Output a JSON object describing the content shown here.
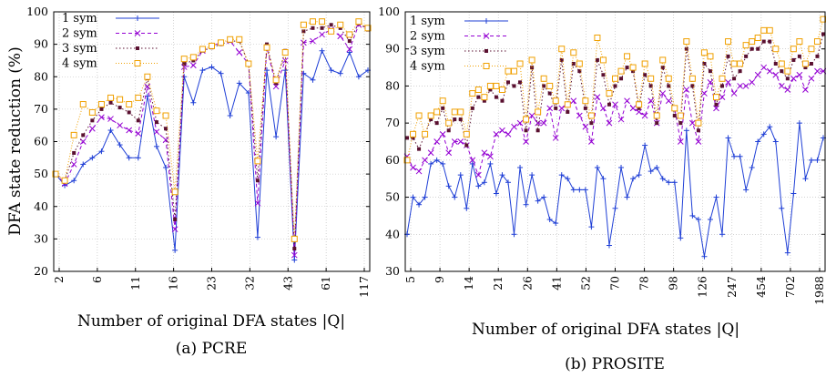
{
  "chart_data": [
    {
      "type": "line",
      "caption": "(a) PCRE",
      "ylabel": "DFA state reduction (%)",
      "xlabel": "Number of original DFA states |Q|",
      "ylim": [
        20,
        100
      ],
      "yticks": [
        20,
        30,
        40,
        50,
        60,
        70,
        80,
        90,
        100
      ],
      "xtick_labels": [
        "2",
        "6",
        "11",
        "16",
        "23",
        "32",
        "43",
        "61",
        "117"
      ],
      "legend_position": "top-left",
      "colors": [
        "#1f3fd6",
        "#9400d3",
        "#5a1030",
        "#f0a000"
      ],
      "series": [
        {
          "name": "1 sym",
          "values": [
            50,
            46.5,
            48,
            53,
            55,
            57,
            63.5,
            59,
            55,
            55,
            74,
            58.5,
            52,
            26.5,
            80,
            72,
            82,
            83,
            81,
            68,
            78,
            75,
            30.5,
            82,
            61.5,
            82,
            23.5,
            81,
            79,
            88,
            82,
            81,
            87.5,
            80,
            82
          ]
        },
        {
          "name": "2 sym",
          "values": [
            50,
            47,
            53,
            60,
            64,
            67.5,
            67,
            65,
            63.5,
            62.5,
            77,
            63,
            60.5,
            33,
            83,
            83.5,
            88,
            89.5,
            90.5,
            91,
            87.5,
            84,
            41,
            89,
            77,
            85,
            25,
            90.5,
            91,
            93,
            94.5,
            92.5,
            88.5,
            96,
            95
          ]
        },
        {
          "name": "3 sym",
          "values": [
            50,
            48,
            56.5,
            62,
            66.5,
            70,
            72,
            70.5,
            69,
            66.5,
            79.5,
            66,
            64,
            36,
            84,
            85,
            88,
            89,
            90,
            91,
            91,
            84,
            48,
            90,
            78,
            88,
            27,
            94,
            95,
            95,
            96,
            95,
            91,
            96.5,
            94.5
          ]
        },
        {
          "name": "4 sym",
          "values": [
            50,
            48,
            62,
            71.5,
            69,
            71.5,
            73.5,
            73,
            71.5,
            73.5,
            80,
            69.5,
            68,
            44.5,
            85.5,
            86,
            88.5,
            89.5,
            90.5,
            91.5,
            91.5,
            84,
            54,
            89,
            79,
            87.5,
            30,
            96,
            97,
            97,
            94,
            96,
            93,
            97,
            95
          ]
        }
      ]
    },
    {
      "type": "line",
      "caption": "(b) PROSITE",
      "xlabel": "Number of original DFA states |Q|",
      "ylim": [
        30,
        100
      ],
      "yticks": [
        30,
        40,
        50,
        60,
        70,
        80,
        90,
        100
      ],
      "xtick_labels": [
        "5",
        "9",
        "14",
        "21",
        "26",
        "41",
        "52",
        "70",
        "78",
        "98",
        "126",
        "247",
        "454",
        "702",
        "1988"
      ],
      "legend_position": "top-left",
      "colors": [
        "#1f3fd6",
        "#9400d3",
        "#5a1030",
        "#f0a000"
      ],
      "series": [
        {
          "name": "1 sym",
          "values": [
            40,
            50,
            48,
            50,
            59,
            60,
            59,
            53,
            50,
            56,
            47,
            59,
            53,
            54,
            59,
            51,
            56,
            54,
            40,
            58,
            48,
            56,
            49,
            50,
            44,
            43,
            56,
            55,
            52,
            52,
            52,
            42,
            58,
            55,
            37,
            47,
            58,
            50,
            55,
            56,
            64,
            57,
            58,
            55,
            54,
            54,
            39,
            68,
            45,
            44,
            34,
            44,
            50,
            40,
            66,
            61,
            61,
            52,
            58,
            65,
            67,
            69,
            65,
            47,
            35,
            51,
            70,
            55,
            60,
            60,
            66
          ]
        },
        {
          "name": "2 sym",
          "values": [
            61,
            58,
            57,
            60,
            62,
            65,
            67,
            62,
            65,
            65,
            64,
            60,
            56,
            62,
            61,
            67,
            68,
            67,
            69,
            70,
            65,
            72,
            70,
            70,
            74,
            66,
            74,
            75,
            76,
            72,
            69,
            65,
            77,
            74,
            70,
            75,
            71,
            76,
            74,
            73,
            72,
            76,
            70,
            78,
            76,
            74,
            65,
            79,
            70,
            65,
            78,
            81,
            74,
            77,
            81,
            78,
            80,
            80,
            81,
            83,
            85,
            84,
            83,
            80,
            79,
            82,
            83,
            79,
            82,
            84,
            84
          ]
        },
        {
          "name": "3 sym",
          "values": [
            66,
            66,
            63,
            67,
            71,
            70,
            74,
            68,
            71,
            71,
            64,
            74,
            77,
            76,
            79,
            77,
            76,
            81,
            80,
            81,
            68,
            85,
            68,
            80,
            78,
            74,
            87,
            73,
            86,
            84,
            74,
            70,
            87,
            83,
            75,
            80,
            82,
            85,
            84,
            74,
            83,
            80,
            70,
            85,
            80,
            72,
            70,
            90,
            80,
            68,
            86,
            84,
            75,
            80,
            88,
            82,
            84,
            88,
            90,
            90,
            92,
            92,
            86,
            84,
            82,
            87,
            88,
            85,
            86,
            88,
            94
          ]
        },
        {
          "name": "4 sym",
          "values": [
            60,
            67,
            72,
            67,
            72,
            73,
            76,
            70,
            73,
            73,
            67,
            78,
            79,
            77,
            80,
            80,
            79,
            84,
            84,
            86,
            71,
            87,
            73,
            82,
            80,
            76,
            90,
            75,
            89,
            86,
            76,
            72,
            93,
            87,
            78,
            82,
            84,
            88,
            85,
            75,
            86,
            82,
            72,
            87,
            82,
            74,
            72,
            92,
            82,
            70,
            89,
            88,
            77,
            82,
            92,
            86,
            86,
            91,
            92,
            93,
            95,
            95,
            90,
            86,
            84,
            90,
            92,
            86,
            90,
            92,
            98
          ]
        }
      ]
    }
  ]
}
